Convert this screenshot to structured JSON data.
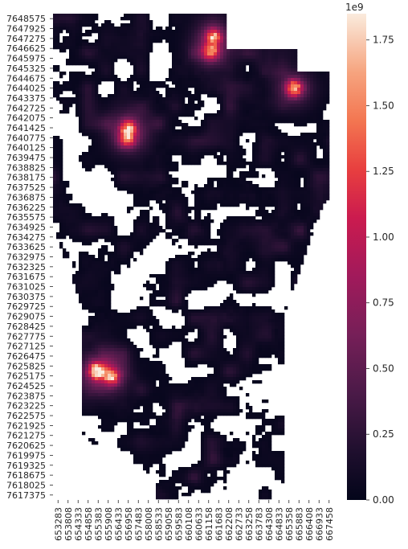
{
  "chart_data": {
    "type": "heatmap",
    "colormap": "rocket",
    "y_tick_labels": [
      "7648575",
      "7647925",
      "7647275",
      "7646625",
      "7645975",
      "7645325",
      "7644675",
      "7644025",
      "7643375",
      "7642725",
      "7642075",
      "7641425",
      "7640775",
      "7640125",
      "7639475",
      "7638825",
      "7638175",
      "7637525",
      "7636875",
      "7636225",
      "7635575",
      "7634925",
      "7634275",
      "7633625",
      "7632975",
      "7632325",
      "7631675",
      "7631025",
      "7630375",
      "7629725",
      "7629075",
      "7628425",
      "7627775",
      "7627125",
      "7626475",
      "7625825",
      "7625175",
      "7624525",
      "7623875",
      "7623225",
      "7622575",
      "7621925",
      "7621275",
      "7620625",
      "7619975",
      "7619325",
      "7618675",
      "7618025",
      "7617375"
    ],
    "x_tick_labels": [
      "653283",
      "653808",
      "654333",
      "654858",
      "655383",
      "655908",
      "656433",
      "656958",
      "657483",
      "658008",
      "658533",
      "659058",
      "659583",
      "660108",
      "660633",
      "661158",
      "661683",
      "662208",
      "662733",
      "663258",
      "663783",
      "664308",
      "664833",
      "665358",
      "665883",
      "666408",
      "666933",
      "667458"
    ],
    "colorbar": {
      "multiplier_label": "1e9",
      "min": 0,
      "max": 1.85,
      "ticks": [
        0.0,
        0.25,
        0.5,
        0.75,
        1.0,
        1.25,
        1.5,
        1.75
      ],
      "tick_labels": [
        "0.00",
        "0.25",
        "0.50",
        "0.75",
        "1.00",
        "1.25",
        "1.50",
        "1.75"
      ]
    },
    "hotspots": [
      {
        "x": 661420,
        "y": 7647400,
        "value": 1.4
      },
      {
        "x": 661250,
        "y": 7646400,
        "value": 1.15
      },
      {
        "x": 665620,
        "y": 7644000,
        "value": 1.7
      },
      {
        "x": 656950,
        "y": 7641400,
        "value": 1.45
      },
      {
        "x": 656950,
        "y": 7640700,
        "value": 0.95
      },
      {
        "x": 655300,
        "y": 7625500,
        "value": 1.75
      },
      {
        "x": 656100,
        "y": 7625100,
        "value": 1.2
      }
    ]
  }
}
